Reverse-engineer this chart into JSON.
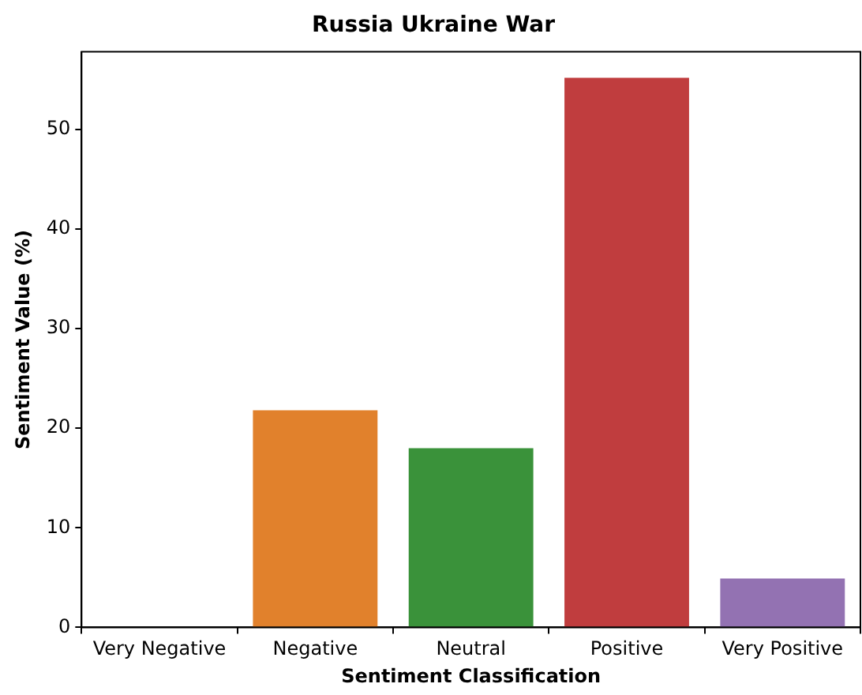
{
  "chart_data": {
    "type": "bar",
    "title": "Russia Ukraine War",
    "xlabel": "Sentiment Classification",
    "ylabel": "Sentiment Value (%)",
    "categories": [
      "Very Negative",
      "Negative",
      "Neutral",
      "Positive",
      "Very Positive"
    ],
    "values": [
      0,
      21.8,
      18.0,
      55.2,
      4.9
    ],
    "colors": [
      "#3274a1",
      "#e1812c",
      "#3a923a",
      "#c03d3e",
      "#9372b2"
    ],
    "ylim": [
      0,
      57.8
    ],
    "yticks": [
      0,
      10,
      20,
      30,
      40,
      50
    ],
    "grid": false,
    "legend": false
  }
}
